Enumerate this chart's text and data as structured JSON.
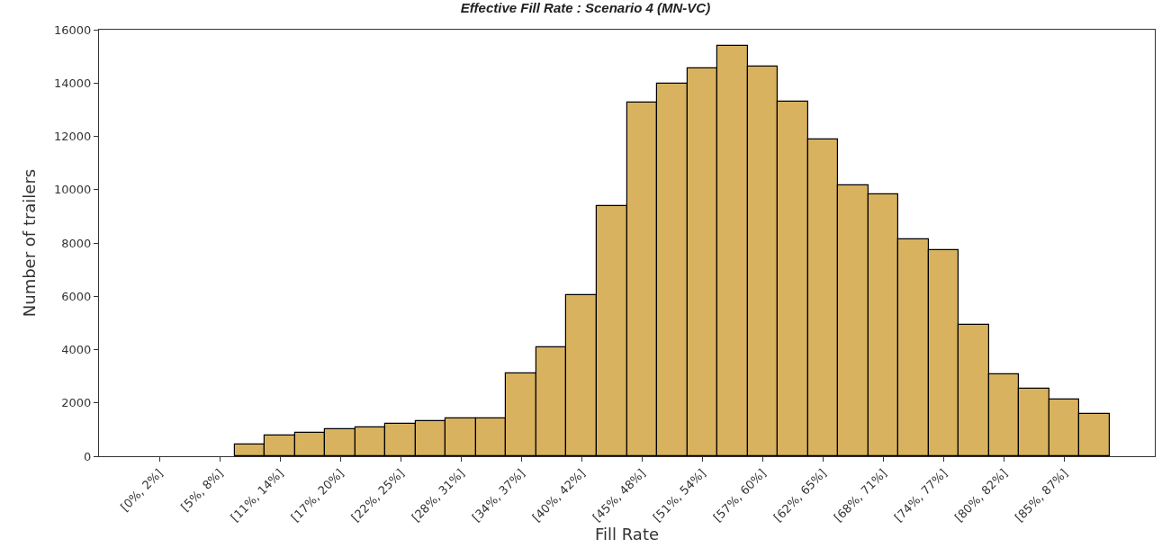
{
  "chart_data": {
    "type": "bar",
    "title": "Effective Fill Rate : Scenario 4 (MN-VC)",
    "xlabel": "Fill Rate",
    "ylabel": "Number of trailers",
    "categories": [
      "[0%, 2%]",
      null,
      "[5%, 8%]",
      null,
      "[11%, 14%]",
      null,
      "[17%, 20%]",
      null,
      "[22%, 25%]",
      null,
      "[28%, 31%]",
      null,
      "[34%, 37%]",
      null,
      "[40%, 42%]",
      null,
      "[45%, 48%]",
      null,
      "[51%, 54%]",
      null,
      "[57%, 60%]",
      null,
      "[62%, 65%]",
      null,
      "[68%, 71%]",
      null,
      "[74%, 77%]",
      null,
      "[80%, 82%]",
      null,
      "[85%, 87%]",
      null
    ],
    "values": [
      null,
      null,
      null,
      450,
      760,
      870,
      1020,
      1070,
      1230,
      1330,
      1430,
      1430,
      3090,
      4070,
      6030,
      9390,
      13260,
      13990,
      14560,
      15400,
      14620,
      13310,
      11870,
      10160,
      9810,
      8150,
      7740,
      4940,
      3080,
      2520,
      2110,
      1600
    ],
    "color": "#d8b25e",
    "ylim": [
      0,
      16000
    ],
    "yticks": [
      0,
      2000,
      4000,
      6000,
      8000,
      10000,
      12000,
      14000,
      16000
    ]
  }
}
